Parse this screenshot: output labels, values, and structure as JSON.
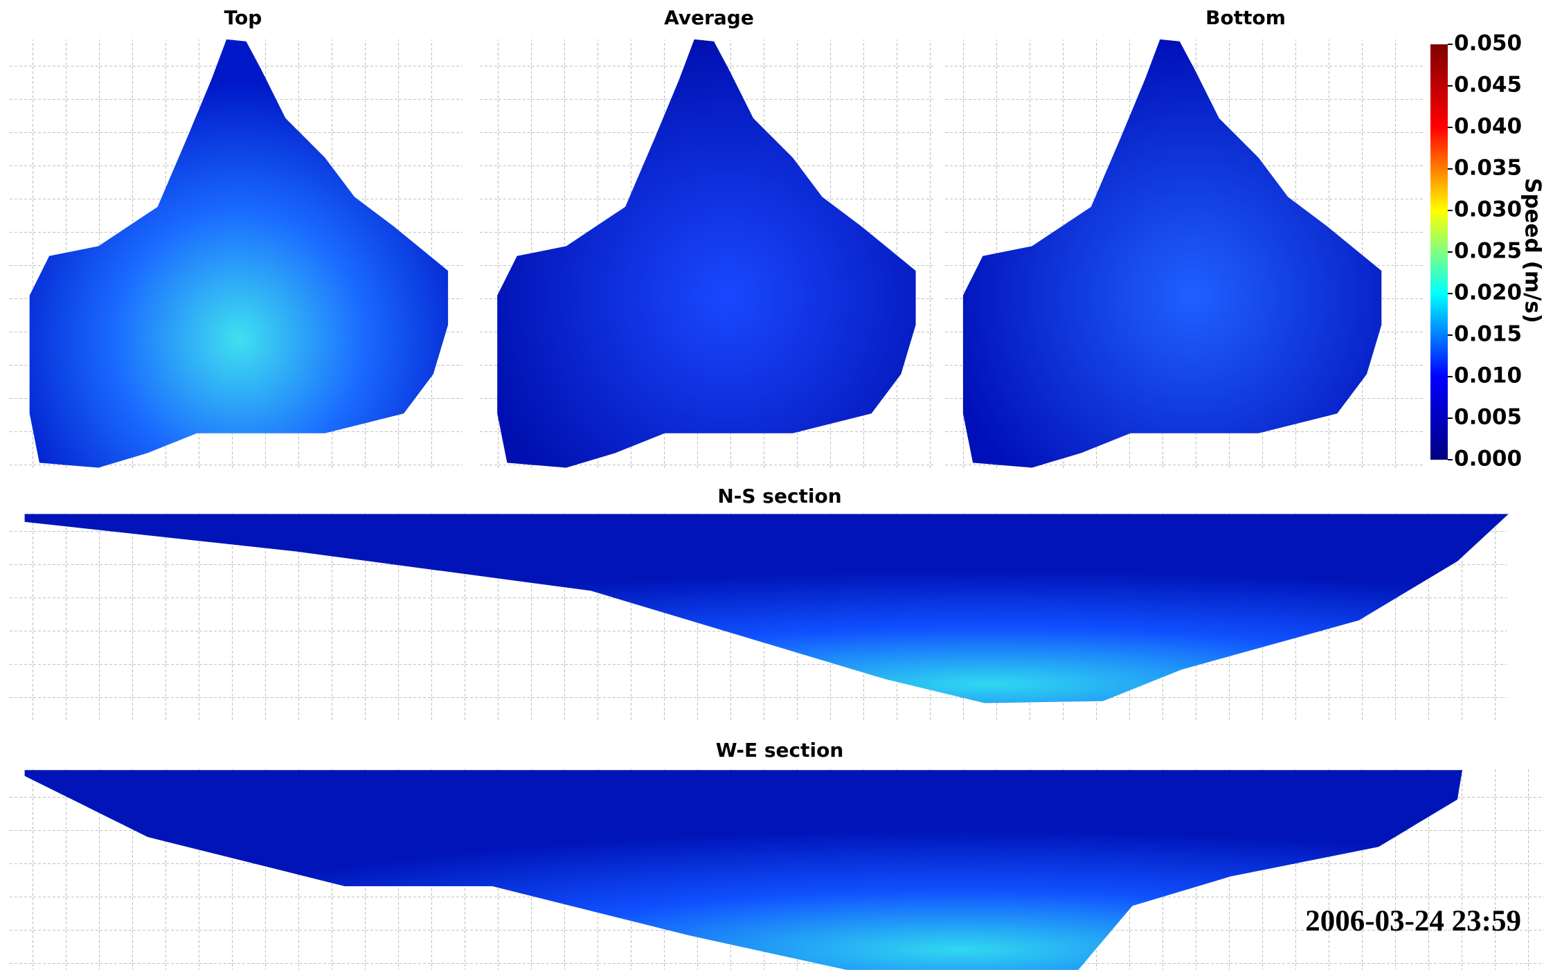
{
  "chart_data": {
    "type": "heatmap",
    "panels": [
      {
        "title": "Top"
      },
      {
        "title": "Average"
      },
      {
        "title": "Bottom"
      },
      {
        "title": "N-S section"
      },
      {
        "title": "W-E section"
      }
    ],
    "colorbar": {
      "label": "Speed (m/s)",
      "lim": [
        0,
        0.05
      ],
      "ticks": [
        {
          "value": 0,
          "label": "0.000"
        },
        {
          "value": 0.005,
          "label": "0.005"
        },
        {
          "value": 0.01,
          "label": "0.010"
        },
        {
          "value": 0.015,
          "label": "0.015"
        },
        {
          "value": 0.02,
          "label": "0.020"
        },
        {
          "value": 0.025,
          "label": "0.025"
        },
        {
          "value": 0.03,
          "label": "0.030"
        },
        {
          "value": 0.035,
          "label": "0.035"
        },
        {
          "value": 0.04,
          "label": "0.040"
        },
        {
          "value": 0.045,
          "label": "0.045"
        },
        {
          "value": 0.05,
          "label": "0.050"
        }
      ],
      "colors": [
        "#00007f",
        "#0000ff",
        "#00ffff",
        "#ffff00",
        "#ff0000",
        "#7f0000"
      ]
    },
    "timestamp": "2006-03-24 23:59"
  }
}
